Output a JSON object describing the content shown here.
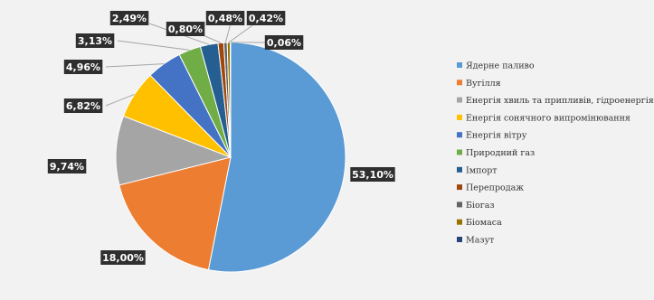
{
  "chart_data": {
    "type": "pie",
    "title": "",
    "start_angle_deg": 0,
    "direction": "clockwise",
    "legend_position": "right",
    "slices": [
      {
        "label": "Ядерне паливо",
        "value": 53.1,
        "display": "53,10%",
        "color": "#5b9bd5"
      },
      {
        "label": "Вугілля",
        "value": 18.0,
        "display": "18,00%",
        "color": "#ed7d31"
      },
      {
        "label": "Енергія хвиль та припливів, гідроенергія",
        "value": 9.74,
        "display": "9,74%",
        "color": "#a5a5a5"
      },
      {
        "label": "Енергія сонячного випромінювання",
        "value": 6.82,
        "display": "6,82%",
        "color": "#ffc000"
      },
      {
        "label": "Енергія вітру",
        "value": 4.96,
        "display": "4,96%",
        "color": "#4472c4"
      },
      {
        "label": "Природний газ",
        "value": 3.13,
        "display": "3,13%",
        "color": "#70ad47"
      },
      {
        "label": "Імпорт",
        "value": 2.49,
        "display": "2,49%",
        "color": "#255e91"
      },
      {
        "label": "Перепродаж",
        "value": 0.8,
        "display": "0,80%",
        "color": "#9e480e"
      },
      {
        "label": "Біогаз",
        "value": 0.48,
        "display": "0,48%",
        "color": "#636363"
      },
      {
        "label": "Біомаса",
        "value": 0.42,
        "display": "0,42%",
        "color": "#997300"
      },
      {
        "label": "Мазут",
        "value": 0.06,
        "display": "0,06%",
        "color": "#264478"
      }
    ]
  }
}
